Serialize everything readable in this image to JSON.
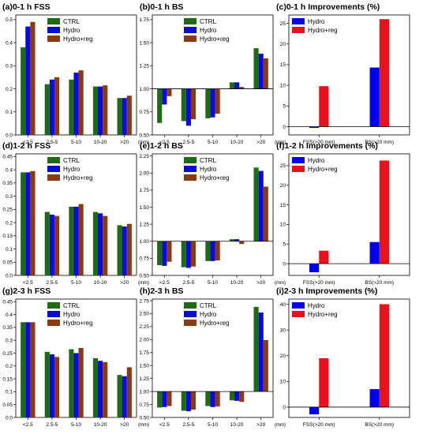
{
  "colors": {
    "CTRL": "#1f6b12",
    "Hydro": "#0a0adf",
    "Hydro+reg": "#8a3a12",
    "improve_hydro": "#0000ee",
    "improve_hydroreg": "#e8121b"
  },
  "chart_data": [
    {
      "type": "bar",
      "title": "(a)0-1 h FSS",
      "categories": [
        "<2.5",
        "2.5-5",
        "5-10",
        "10-20",
        ">20"
      ],
      "unit": "(mm)",
      "ylim": [
        0,
        0.52
      ],
      "yticks": [
        0,
        0.1,
        0.2,
        0.3,
        0.4,
        0.5
      ],
      "baseline": 0,
      "legend": [
        "CTRL",
        "Hydro",
        "Hydro+reg"
      ],
      "series": [
        {
          "name": "CTRL",
          "values": [
            0.38,
            0.22,
            0.24,
            0.21,
            0.16
          ]
        },
        {
          "name": "Hydro",
          "values": [
            0.47,
            0.24,
            0.27,
            0.21,
            0.16
          ]
        },
        {
          "name": "Hydro+reg",
          "values": [
            0.49,
            0.25,
            0.28,
            0.215,
            0.17
          ]
        }
      ]
    },
    {
      "type": "bar",
      "title": "(b)0-1 h BS",
      "categories": [
        "<2.5",
        "2.5-5",
        "5-10",
        "10-20",
        ">20"
      ],
      "unit": "(mm)",
      "ylim": [
        0.5,
        1.8
      ],
      "yticks": [
        0.5,
        0.75,
        1.0,
        1.25,
        1.5,
        1.75
      ],
      "baseline": 1.0,
      "legend": [
        "CTRL",
        "Hydro",
        "Hydro+reg"
      ],
      "series": [
        {
          "name": "CTRL",
          "values": [
            0.63,
            0.65,
            0.68,
            1.07,
            1.44
          ]
        },
        {
          "name": "Hydro",
          "values": [
            0.83,
            0.6,
            0.69,
            1.07,
            1.38
          ]
        },
        {
          "name": "Hydro+reg",
          "values": [
            0.92,
            0.67,
            0.73,
            1.02,
            1.33
          ]
        }
      ]
    },
    {
      "type": "bar",
      "title": "(c)0-1 h Improvements (%)",
      "categories": [
        "FSS(>20 mm)",
        "BS(>20 mm)"
      ],
      "unit": "",
      "ylim": [
        -2,
        27
      ],
      "yticks": [
        0,
        5,
        10,
        15,
        20,
        25
      ],
      "baseline": 0,
      "legend": [
        "Hydro",
        "Hydro+reg"
      ],
      "series": [
        {
          "name": "Hydro",
          "values": [
            -0.3,
            14.3
          ]
        },
        {
          "name": "Hydro+reg",
          "values": [
            9.8,
            26.0
          ]
        }
      ]
    },
    {
      "type": "bar",
      "title": "(d)1-2 h FSS",
      "categories": [
        "<2.5",
        "2.5-5",
        "5-10",
        "10-20",
        ">20"
      ],
      "unit": "(mm)",
      "ylim": [
        0,
        0.46
      ],
      "yticks": [
        0,
        0.05,
        0.1,
        0.15,
        0.2,
        0.25,
        0.3,
        0.35,
        0.4,
        0.45
      ],
      "baseline": 0,
      "legend": [
        "CTRL",
        "Hydro",
        "Hydro+reg"
      ],
      "series": [
        {
          "name": "CTRL",
          "values": [
            0.39,
            0.24,
            0.26,
            0.24,
            0.19
          ]
        },
        {
          "name": "Hydro",
          "values": [
            0.39,
            0.23,
            0.26,
            0.235,
            0.185
          ]
        },
        {
          "name": "Hydro+reg",
          "values": [
            0.395,
            0.225,
            0.27,
            0.225,
            0.195
          ]
        }
      ]
    },
    {
      "type": "bar",
      "title": "(e)1-2 h BS",
      "categories": [
        "<2.5",
        "2.5-5",
        "5-10",
        "10-20",
        ">20"
      ],
      "unit": "(mm)",
      "ylim": [
        0.5,
        2.28
      ],
      "yticks": [
        0.5,
        0.75,
        1.0,
        1.25,
        1.5,
        1.75,
        2.0,
        2.25
      ],
      "baseline": 1.0,
      "legend": [
        "CTRL",
        "Hydro",
        "Hydro+reg"
      ],
      "series": [
        {
          "name": "CTRL",
          "values": [
            0.65,
            0.62,
            0.71,
            1.03,
            2.08
          ]
        },
        {
          "name": "Hydro",
          "values": [
            0.64,
            0.61,
            0.71,
            1.03,
            2.03
          ]
        },
        {
          "name": "Hydro+reg",
          "values": [
            0.7,
            0.63,
            0.72,
            0.96,
            1.8
          ]
        }
      ]
    },
    {
      "type": "bar",
      "title": "(f)1-2 h Improvements (%)",
      "categories": [
        "FSS(>20 mm)",
        "BS(>20 mm)"
      ],
      "unit": "",
      "ylim": [
        -3,
        28
      ],
      "yticks": [
        0,
        5,
        10,
        15,
        20,
        25
      ],
      "baseline": 0,
      "legend": [
        "Hydro",
        "Hydro+reg"
      ],
      "series": [
        {
          "name": "Hydro",
          "values": [
            -2.2,
            5.5
          ]
        },
        {
          "name": "Hydro+reg",
          "values": [
            3.3,
            26.3
          ]
        }
      ]
    },
    {
      "type": "bar",
      "title": "(g)2-3 h FSS",
      "categories": [
        "<2.5",
        "2.5-5",
        "5-10",
        "10-20",
        ">20"
      ],
      "unit": "(mm)",
      "ylim": [
        0,
        0.46
      ],
      "yticks": [
        0,
        0.05,
        0.1,
        0.15,
        0.2,
        0.25,
        0.3,
        0.35,
        0.4,
        0.45
      ],
      "baseline": 0,
      "legend": [
        "CTRL",
        "Hydro",
        "Hydro+reg"
      ],
      "series": [
        {
          "name": "CTRL",
          "values": [
            0.37,
            0.255,
            0.265,
            0.23,
            0.165
          ]
        },
        {
          "name": "Hydro",
          "values": [
            0.37,
            0.245,
            0.25,
            0.22,
            0.16
          ]
        },
        {
          "name": "Hydro+reg",
          "values": [
            0.37,
            0.235,
            0.27,
            0.215,
            0.195
          ]
        }
      ]
    },
    {
      "type": "bar",
      "title": "(h)2-3 h BS",
      "categories": [
        "<2.5",
        "2.5-5",
        "5-10",
        "10-20",
        ">20"
      ],
      "unit": "(mm)",
      "ylim": [
        0.5,
        2.78
      ],
      "yticks": [
        0.5,
        0.75,
        1.0,
        1.25,
        1.5,
        1.75,
        2.0,
        2.25,
        2.5,
        2.75
      ],
      "baseline": 1.0,
      "legend": [
        "CTRL",
        "Hydro",
        "Hydro+reg"
      ],
      "series": [
        {
          "name": "CTRL",
          "values": [
            0.69,
            0.63,
            0.72,
            0.83,
            2.63
          ]
        },
        {
          "name": "Hydro",
          "values": [
            0.7,
            0.62,
            0.7,
            0.82,
            2.52
          ]
        },
        {
          "name": "Hydro+reg",
          "values": [
            0.72,
            0.65,
            0.71,
            0.8,
            1.99
          ]
        }
      ]
    },
    {
      "type": "bar",
      "title": "(i)2-3 h Improvements (%)",
      "categories": [
        "FSS(>20 mm)",
        "BS(>20 mm)"
      ],
      "unit": "",
      "ylim": [
        -4,
        42
      ],
      "yticks": [
        0,
        10,
        20,
        30,
        40
      ],
      "baseline": 0,
      "legend": [
        "Hydro",
        "Hydro+reg"
      ],
      "series": [
        {
          "name": "Hydro",
          "values": [
            -2.8,
            7.0
          ]
        },
        {
          "name": "Hydro+reg",
          "values": [
            19.0,
            40.0
          ]
        }
      ]
    }
  ]
}
